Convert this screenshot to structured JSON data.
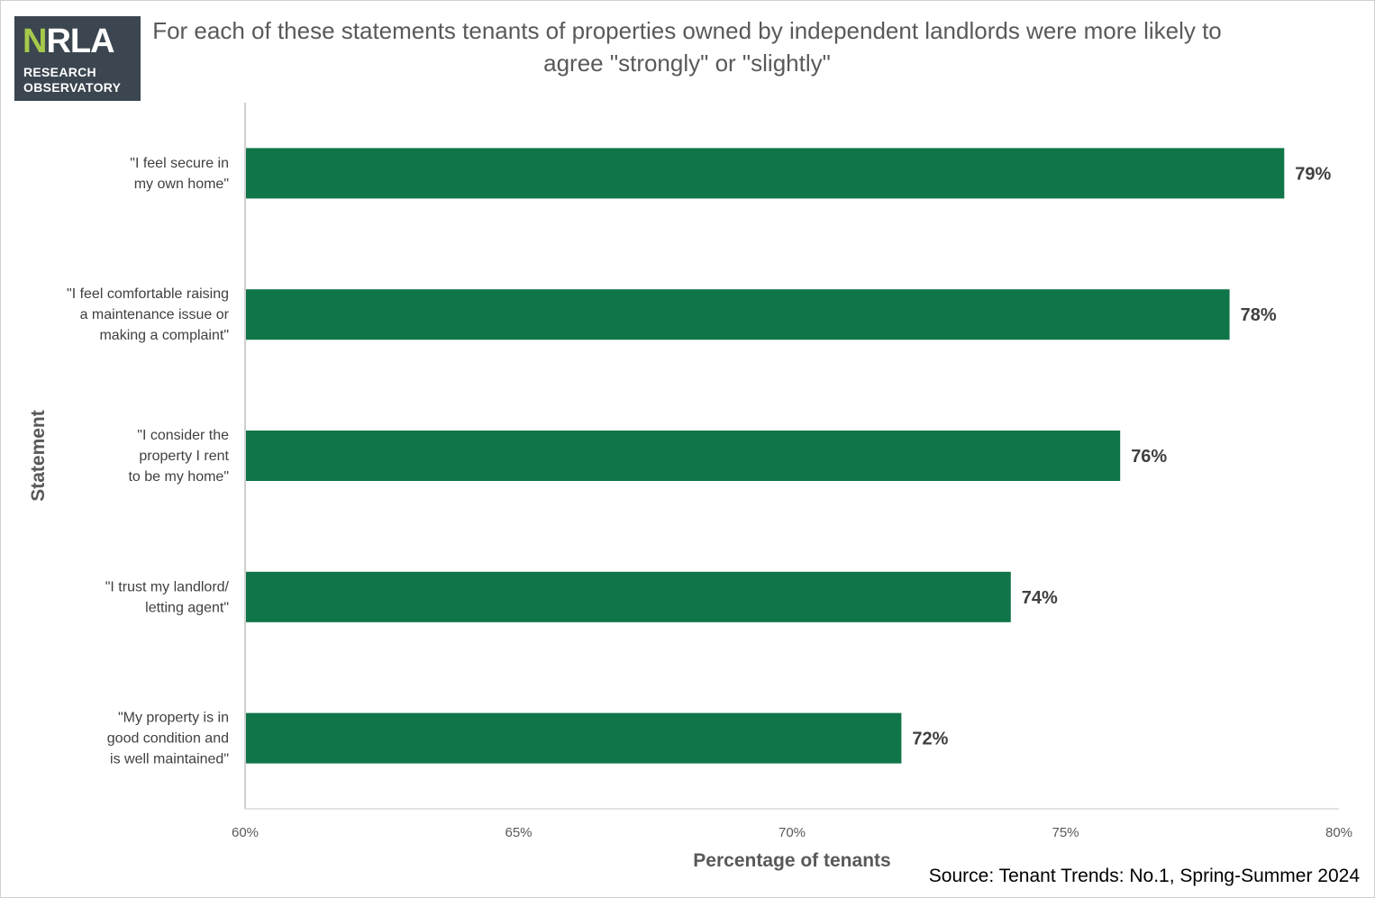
{
  "logo": {
    "mark_n": "N",
    "mark_rest": "RLA",
    "line1": "RESEARCH",
    "line2": "OBSERVATORY",
    "background": "#3b4650",
    "accent": "#a6c94b"
  },
  "title": "For each of these statements tenants of properties owned by independent landlords were more likely to agree \"strongly\" or \"slightly\"",
  "source": "Source: Tenant Trends: No.1, Spring-Summer 2024",
  "chart_data": {
    "type": "bar",
    "orientation": "horizontal",
    "title": "For each of these statements tenants of properties owned by independent landlords were more likely to agree \"strongly\" or \"slightly\"",
    "categories": [
      [
        "\"I feel secure in",
        "my own home\""
      ],
      [
        "\"I feel comfortable raising",
        "a maintenance issue or",
        "making a complaint\""
      ],
      [
        "\"I consider the",
        "property I rent",
        "to be my home\""
      ],
      [
        "\"I trust my landlord/",
        "letting agent\""
      ],
      [
        "\"My property is in",
        "good condition and",
        "is well maintained\""
      ]
    ],
    "values": [
      79,
      78,
      76,
      74,
      72
    ],
    "value_labels": [
      "79%",
      "78%",
      "76%",
      "74%",
      "72%"
    ],
    "xlabel": "Percentage of tenants",
    "ylabel": "Statement",
    "xlim": [
      60,
      80
    ],
    "ticks": [
      60,
      65,
      70,
      75,
      80
    ],
    "tick_labels": [
      "60%",
      "65%",
      "70%",
      "75%",
      "80%"
    ],
    "bar_color": "#107548",
    "grid": false,
    "legend": "none"
  }
}
